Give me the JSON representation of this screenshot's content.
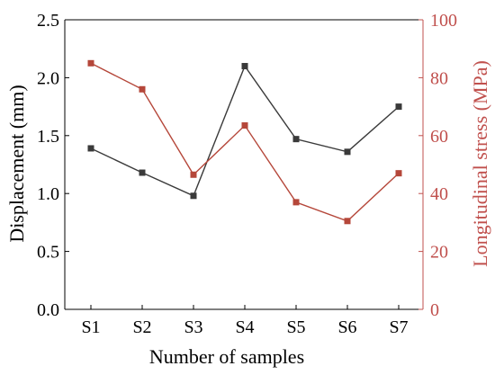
{
  "chart_data": {
    "type": "line",
    "categories": [
      "S1",
      "S2",
      "S3",
      "S4",
      "S5",
      "S6",
      "S7"
    ],
    "xlabel": "Number of samples",
    "y_left": {
      "label": "Displacement (mm)",
      "lim": [
        0,
        2.5
      ],
      "ticks": [
        "0.0",
        "0.5",
        "1.0",
        "1.5",
        "2.0",
        "2.5"
      ],
      "color": "#000000"
    },
    "y_right": {
      "label": "Longitudinal stress (MPa)",
      "lim": [
        0,
        100
      ],
      "ticks": [
        "0",
        "20",
        "40",
        "60",
        "80",
        "100"
      ],
      "color": "#c0504d"
    },
    "series": [
      {
        "axis": "left",
        "color": "#3a3a3a",
        "values": [
          1.39,
          1.18,
          0.98,
          2.1,
          1.47,
          1.36,
          1.75
        ]
      },
      {
        "axis": "right",
        "color": "#b5473a",
        "values": [
          85.0,
          76.0,
          46.5,
          63.5,
          37.0,
          30.5,
          47.0
        ]
      }
    ],
    "grid": false,
    "legend": "none"
  }
}
